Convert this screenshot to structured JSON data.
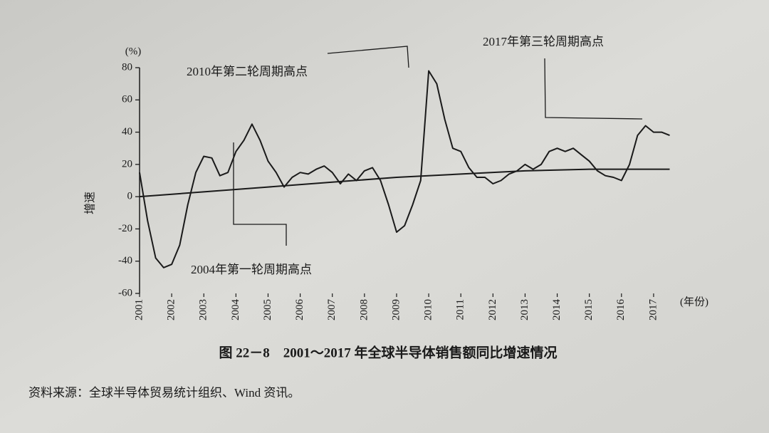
{
  "chart_data": {
    "type": "line",
    "y_unit": "(%)",
    "x_unit": "(年份)",
    "y_label": "增速",
    "caption": "图 22－8　2001～2017 年全球半导体销售额同比增速情况",
    "source": "资料来源：全球半导体贸易统计组织、Wind 资讯。",
    "annotations": [
      "2010年第二轮周期高点",
      "2017年第三轮周期高点",
      "2004年第一轮周期高点"
    ],
    "xlim": [
      2001,
      2017.6
    ],
    "xticks": [
      2001,
      2002,
      2003,
      2004,
      2005,
      2006,
      2007,
      2008,
      2009,
      2010,
      2011,
      2012,
      2013,
      2014,
      2015,
      2016,
      2017
    ],
    "ylim": [
      -60,
      80
    ],
    "yticks": [
      -60,
      -40,
      -20,
      0,
      20,
      40,
      60,
      80
    ],
    "series": [
      {
        "color": "#1a1a1a",
        "x": [
          2001,
          2001.25,
          2001.5,
          2001.75,
          2002,
          2002.25,
          2002.5,
          2002.75,
          2003,
          2003.25,
          2003.5,
          2003.75,
          2004,
          2004.25,
          2004.5,
          2004.75,
          2005,
          2005.25,
          2005.5,
          2005.75,
          2006,
          2006.25,
          2006.5,
          2006.75,
          2007,
          2007.25,
          2007.5,
          2007.75,
          2008,
          2008.25,
          2008.5,
          2008.75,
          2009,
          2009.25,
          2009.5,
          2009.75,
          2010,
          2010.25,
          2010.5,
          2010.75,
          2011,
          2011.25,
          2011.5,
          2011.75,
          2012,
          2012.25,
          2012.5,
          2012.75,
          2013,
          2013.25,
          2013.5,
          2013.75,
          2014,
          2014.25,
          2014.5,
          2014.75,
          2015,
          2015.25,
          2015.5,
          2015.75,
          2016,
          2016.25,
          2016.5,
          2016.75,
          2017,
          2017.25,
          2017.5
        ],
        "values": [
          15,
          -15,
          -38,
          -44,
          -42,
          -30,
          -5,
          15,
          25,
          24,
          13,
          15,
          28,
          35,
          45,
          35,
          22,
          15,
          6,
          12,
          15,
          14,
          17,
          19,
          15,
          8,
          14,
          10,
          16,
          18,
          10,
          -5,
          -22,
          -18,
          -5,
          10,
          78,
          70,
          48,
          30,
          28,
          18,
          12,
          12,
          8,
          10,
          14,
          16,
          20,
          17,
          20,
          28,
          30,
          28,
          30,
          26,
          22,
          16,
          13,
          12,
          10,
          20,
          38,
          44,
          40,
          40,
          38
        ]
      },
      {
        "color": "#1a1a1a",
        "x": [
          2001,
          2003,
          2005,
          2007,
          2009,
          2011,
          2013,
          2015,
          2017.5
        ],
        "values": [
          0,
          3,
          6,
          9,
          12,
          14,
          16,
          17,
          17
        ]
      }
    ]
  }
}
